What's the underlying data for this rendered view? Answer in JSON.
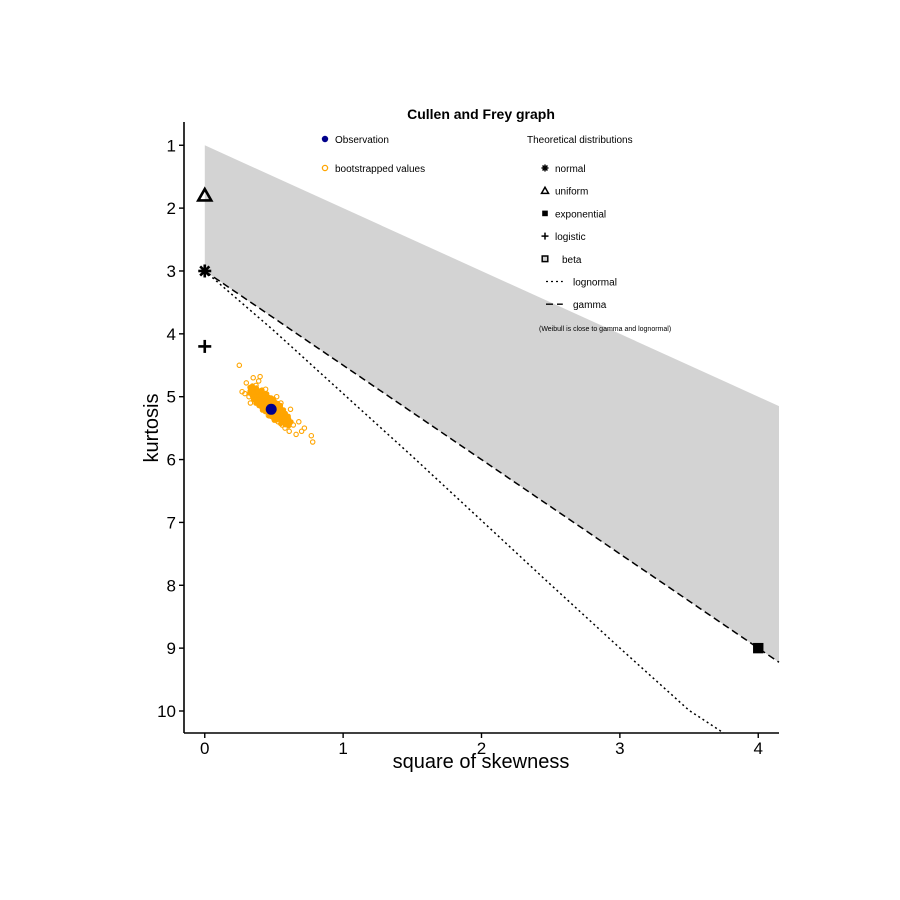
{
  "chart_data": {
    "type": "scatter",
    "title": "Cullen and Frey graph",
    "xlabel": "square of skewness",
    "ylabel": "kurtosis",
    "xlim": [
      -0.15,
      4.15
    ],
    "ylim": [
      10.35,
      0.63
    ],
    "y_reversed": true,
    "grid": false,
    "x_ticks": [
      0,
      1,
      2,
      3,
      4
    ],
    "y_ticks": [
      1,
      2,
      3,
      4,
      5,
      6,
      7,
      8,
      9,
      10
    ],
    "observation": {
      "label": "Observation",
      "x": 0.48,
      "y": 5.2,
      "color": "#00008B"
    },
    "bootstrap": {
      "label": "bootstrapped values",
      "color": "#FFA500",
      "center": [
        0.47,
        5.15
      ],
      "points": [
        [
          0.25,
          4.5
        ],
        [
          0.27,
          4.92
        ],
        [
          0.3,
          4.78
        ],
        [
          0.32,
          5.0
        ],
        [
          0.34,
          4.85
        ],
        [
          0.35,
          4.7
        ],
        [
          0.36,
          5.05
        ],
        [
          0.38,
          4.9
        ],
        [
          0.39,
          4.75
        ],
        [
          0.4,
          5.1
        ],
        [
          0.41,
          4.95
        ],
        [
          0.42,
          5.2
        ],
        [
          0.43,
          5.0
        ],
        [
          0.44,
          4.88
        ],
        [
          0.45,
          5.15
        ],
        [
          0.46,
          5.3
        ],
        [
          0.47,
          5.05
        ],
        [
          0.48,
          5.25
        ],
        [
          0.49,
          5.1
        ],
        [
          0.5,
          5.35
        ],
        [
          0.51,
          5.2
        ],
        [
          0.52,
          5.0
        ],
        [
          0.53,
          5.4
        ],
        [
          0.54,
          5.25
        ],
        [
          0.55,
          5.1
        ],
        [
          0.56,
          5.45
        ],
        [
          0.57,
          5.3
        ],
        [
          0.58,
          5.5
        ],
        [
          0.6,
          5.35
        ],
        [
          0.61,
          5.55
        ],
        [
          0.62,
          5.2
        ],
        [
          0.64,
          5.45
        ],
        [
          0.66,
          5.6
        ],
        [
          0.68,
          5.4
        ],
        [
          0.7,
          5.55
        ],
        [
          0.72,
          5.5
        ],
        [
          0.77,
          5.62
        ],
        [
          0.78,
          5.72
        ],
        [
          0.33,
          5.1
        ],
        [
          0.37,
          4.82
        ],
        [
          0.4,
          4.68
        ],
        [
          0.29,
          4.95
        ]
      ]
    },
    "distributions": [
      {
        "name": "normal",
        "symbol": "asterisk",
        "x": 0,
        "y": 3
      },
      {
        "name": "uniform",
        "symbol": "triangle",
        "x": 0,
        "y": 1.8
      },
      {
        "name": "exponential",
        "symbol": "square-filled",
        "x": 4,
        "y": 9
      },
      {
        "name": "logistic",
        "symbol": "plus",
        "x": 0,
        "y": 4.2
      },
      {
        "name": "beta",
        "symbol": "square-open",
        "region_color": "#D3D3D3"
      },
      {
        "name": "lognormal",
        "symbol": "dotted-line"
      },
      {
        "name": "gamma",
        "symbol": "dashed-line"
      }
    ],
    "gamma_line": [
      [
        0,
        3
      ],
      [
        4.15,
        9.225
      ]
    ],
    "lognormal_line": [
      [
        0,
        3
      ],
      [
        0.5,
        3.95
      ],
      [
        1,
        4.95
      ],
      [
        1.5,
        5.95
      ],
      [
        2,
        6.97
      ],
      [
        2.5,
        7.99
      ],
      [
        3,
        9.0
      ],
      [
        3.5,
        9.99
      ],
      [
        3.75,
        10.35
      ]
    ],
    "beta_region": [
      [
        0,
        1
      ],
      [
        4.15,
        5.15
      ],
      [
        4.15,
        9.225
      ],
      [
        0,
        3
      ]
    ],
    "legend_left": {
      "position": "top-left inside",
      "items": [
        "Observation",
        "bootstrapped values"
      ]
    },
    "legend_right": {
      "title": "Theoretical distributions",
      "position": "top-right inside",
      "items": [
        "normal",
        "uniform",
        "exponential",
        "logistic",
        "beta",
        "lognormal",
        "gamma"
      ],
      "note": "(Weibull is close to gamma and lognormal)"
    }
  }
}
